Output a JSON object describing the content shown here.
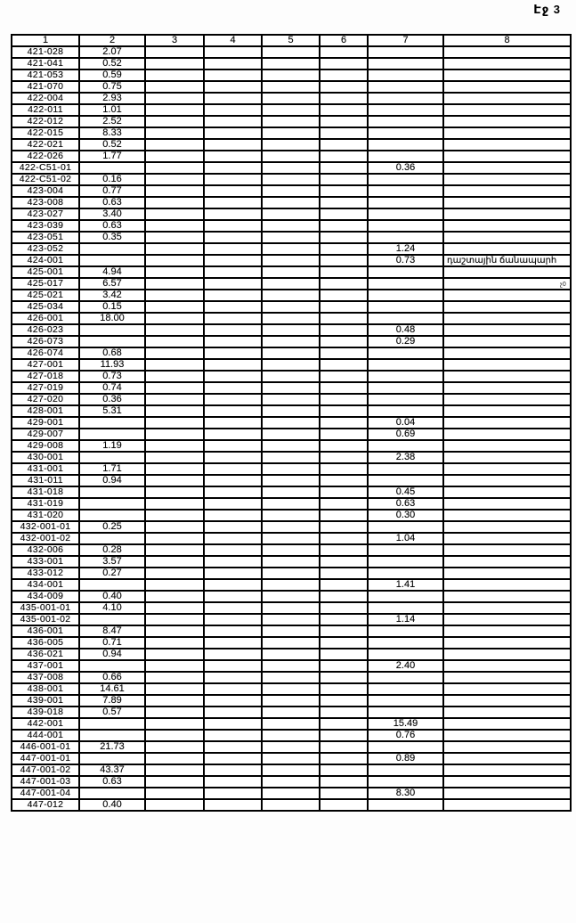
{
  "page": {
    "label": "Էջ 3",
    "margin_note": "չ0"
  },
  "colors": {
    "ink": "#000000",
    "paper": "#ffffff"
  },
  "table": {
    "headers": [
      "1",
      "2",
      "3",
      "4",
      "5",
      "6",
      "7",
      "8"
    ],
    "rows": [
      [
        "421-028",
        "2.07",
        "",
        ""
      ],
      [
        "421-041",
        "0.52",
        "",
        ""
      ],
      [
        "421-053",
        "0.59",
        "",
        ""
      ],
      [
        "421-070",
        "0.75",
        "",
        ""
      ],
      [
        "422-004",
        "2.93",
        "",
        ""
      ],
      [
        "422-011",
        "1.01",
        "",
        ""
      ],
      [
        "422-012",
        "2.52",
        "",
        ""
      ],
      [
        "422-015",
        "8.33",
        "",
        ""
      ],
      [
        "422-021",
        "0.52",
        "",
        ""
      ],
      [
        "422-026",
        "1.77",
        "",
        ""
      ],
      [
        "422-C51-01",
        "",
        "0.36",
        ""
      ],
      [
        "422-C51-02",
        "0.16",
        "",
        ""
      ],
      [
        "423-004",
        "0.77",
        "",
        ""
      ],
      [
        "423-008",
        "0.63",
        "",
        ""
      ],
      [
        "423-027",
        "3.40",
        "",
        ""
      ],
      [
        "423-039",
        "0.63",
        "",
        ""
      ],
      [
        "423-051",
        "0.35",
        "",
        ""
      ],
      [
        "423-052",
        "",
        "1.24",
        ""
      ],
      [
        "424-001",
        "",
        "0.73",
        "դաշտային ճանապարհ"
      ],
      [
        "425-001",
        "4.94",
        "",
        ""
      ],
      [
        "425-017",
        "6.57",
        "",
        ""
      ],
      [
        "425-021",
        "3.42",
        "",
        ""
      ],
      [
        "425-034",
        "0.15",
        "",
        ""
      ],
      [
        "426-001",
        "18.00",
        "",
        ""
      ],
      [
        "426-023",
        "",
        "0.48",
        ""
      ],
      [
        "426-073",
        "",
        "0.29",
        ""
      ],
      [
        "426-074",
        "0.68",
        "",
        ""
      ],
      [
        "427-001",
        "11.93",
        "",
        ""
      ],
      [
        "427-018",
        "0.73",
        "",
        ""
      ],
      [
        "427-019",
        "0.74",
        "",
        ""
      ],
      [
        "427-020",
        "0.36",
        "",
        ""
      ],
      [
        "428-001",
        "5.31",
        "",
        ""
      ],
      [
        "429-001",
        "",
        "0.04",
        ""
      ],
      [
        "429-007",
        "",
        "0.69",
        ""
      ],
      [
        "429-008",
        "1.19",
        "",
        ""
      ],
      [
        "430-001",
        "",
        "2.38",
        ""
      ],
      [
        "431-001",
        "1.71",
        "",
        ""
      ],
      [
        "431-011",
        "0.94",
        "",
        ""
      ],
      [
        "431-018",
        "",
        "0.45",
        ""
      ],
      [
        "431-019",
        "",
        "0.63",
        ""
      ],
      [
        "431-020",
        "",
        "0.30",
        ""
      ],
      [
        "432-001-01",
        "0.25",
        "",
        ""
      ],
      [
        "432-001-02",
        "",
        "1.04",
        ""
      ],
      [
        "432-006",
        "0.28",
        "",
        ""
      ],
      [
        "433-001",
        "3.57",
        "",
        ""
      ],
      [
        "433-012",
        "0.27",
        "",
        ""
      ],
      [
        "434-001",
        "",
        "1.41",
        ""
      ],
      [
        "434-009",
        "0.40",
        "",
        ""
      ],
      [
        "435-001-01",
        "4.10",
        "",
        ""
      ],
      [
        "435-001-02",
        "",
        "1.14",
        ""
      ],
      [
        "436-001",
        "8.47",
        "",
        ""
      ],
      [
        "436-005",
        "0.71",
        "",
        ""
      ],
      [
        "436-021",
        "0.94",
        "",
        ""
      ],
      [
        "437-001",
        "",
        "2.40",
        ""
      ],
      [
        "437-008",
        "0.66",
        "",
        ""
      ],
      [
        "438-001",
        "14.61",
        "",
        ""
      ],
      [
        "439-001",
        "7.89",
        "",
        ""
      ],
      [
        "439-018",
        "0.57",
        "",
        ""
      ],
      [
        "442-001",
        "",
        "15.49",
        ""
      ],
      [
        "444-001",
        "",
        "0.76",
        ""
      ],
      [
        "446-001-01",
        "21.73",
        "",
        ""
      ],
      [
        "447-001-01",
        "",
        "0.89",
        ""
      ],
      [
        "447-001-02",
        "43.37",
        "",
        ""
      ],
      [
        "447-001-03",
        "0.63",
        "",
        ""
      ],
      [
        "447-001-04",
        "",
        "8.30",
        ""
      ],
      [
        "447-012",
        "0.40",
        "",
        ""
      ]
    ]
  }
}
